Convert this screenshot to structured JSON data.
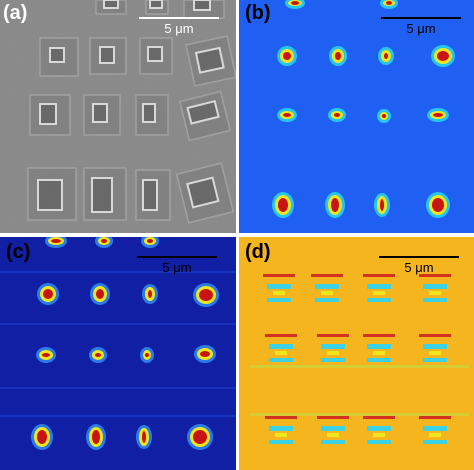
{
  "figure": {
    "panels": [
      {
        "id": "a",
        "label": "(a)",
        "modality": "grayscale SEM micrograph of square and rectangular mesas",
        "scale_bar": "5 μm",
        "label_color": "#ffffff",
        "scale_color": "#ffffff"
      },
      {
        "id": "b",
        "label": "(b)",
        "modality": "jet-colormap intensity map, blue background with red/yellow spots",
        "scale_bar": "5 μm",
        "label_color": "#000000",
        "scale_color": "#000000"
      },
      {
        "id": "c",
        "label": "(c)",
        "modality": "jet-colormap intensity map, dark blue background with red/yellow spots",
        "scale_bar": "5 μm",
        "label_color": "#000000",
        "scale_color": "#000000"
      },
      {
        "id": "d",
        "label": "(d)",
        "modality": "jet-colormap map, orange/yellow background with cyan and red features",
        "scale_bar": "5 μm",
        "label_color": "#000000",
        "scale_color": "#000000"
      }
    ],
    "colors": {
      "sem_bg": "#8a8a8a",
      "b_bg": "#1f5ff2",
      "c_bg": "#101fa3",
      "d_bg": "#f5b51f",
      "hot": "#c81414",
      "warm": "#f5e61f",
      "cyan": "#3cd2e6"
    }
  }
}
